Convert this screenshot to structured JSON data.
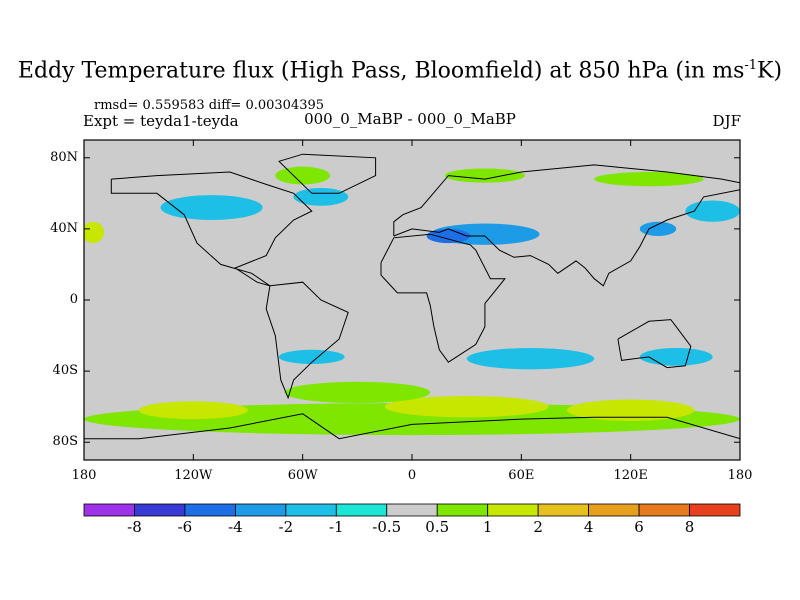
{
  "chart_data": {
    "type": "heatmap",
    "title_main": "Eddy Temperature flux (High Pass, Bloomfield) at 850 hPa (in ms",
    "title_sup": "-1",
    "title_end": "K)",
    "rmsd_text": "rmsd= 0.559583 diff= 0.00304395",
    "expt_text": "Expt = teyda1-teyda",
    "experiment": "000_0_MaBP - 000_0_MaBP",
    "season": "DJF",
    "lon_range": [
      -180,
      180
    ],
    "lat_range": [
      -90,
      90
    ],
    "x_ticks": [
      {
        "lon": -180,
        "label": "180"
      },
      {
        "lon": -120,
        "label": "120W"
      },
      {
        "lon": -60,
        "label": "60W"
      },
      {
        "lon": 0,
        "label": "0"
      },
      {
        "lon": 60,
        "label": "60E"
      },
      {
        "lon": 120,
        "label": "120E"
      },
      {
        "lon": 180,
        "label": "180"
      }
    ],
    "y_ticks": [
      {
        "lat": 80,
        "label": "80N"
      },
      {
        "lat": 40,
        "label": "40N"
      },
      {
        "lat": 0,
        "label": "0"
      },
      {
        "lat": -40,
        "label": "40S"
      },
      {
        "lat": -80,
        "label": "80S"
      }
    ],
    "colorbar": {
      "levels": [
        "-8",
        "-6",
        "-4",
        "-2",
        "-1",
        "-0.5",
        "0.5",
        "1",
        "2",
        "4",
        "6",
        "8"
      ],
      "colors": [
        "#9d32e8",
        "#3939d6",
        "#1e6fe6",
        "#1e9be6",
        "#1ebfe6",
        "#1ee6d6",
        "#cccccc",
        "#7fe600",
        "#c7e600",
        "#e6c01e",
        "#e6a01e",
        "#e67a1e",
        "#e6401e"
      ]
    },
    "anomalies": [
      {
        "lon": 40,
        "lat": 37,
        "rx": 30,
        "ry": 6,
        "value": -3
      },
      {
        "lon": 20,
        "lat": 36,
        "rx": 12,
        "ry": 4,
        "value": -4
      },
      {
        "lon": -110,
        "lat": 52,
        "rx": 28,
        "ry": 7,
        "value": -1.5
      },
      {
        "lon": -50,
        "lat": 58,
        "rx": 15,
        "ry": 5,
        "value": -1.5
      },
      {
        "lon": 165,
        "lat": 50,
        "rx": 15,
        "ry": 6,
        "value": -1.5
      },
      {
        "lon": 135,
        "lat": 40,
        "rx": 10,
        "ry": 4,
        "value": -2
      },
      {
        "lon": 65,
        "lat": -33,
        "rx": 35,
        "ry": 6,
        "value": -1.5
      },
      {
        "lon": 145,
        "lat": -32,
        "rx": 20,
        "ry": 5,
        "value": -1.5
      },
      {
        "lon": -55,
        "lat": -32,
        "rx": 18,
        "ry": 4,
        "value": -1
      },
      {
        "lon": -175,
        "lat": 38,
        "rx": 6,
        "ry": 6,
        "value": 1.5
      },
      {
        "lon": -60,
        "lat": 70,
        "rx": 15,
        "ry": 5,
        "value": 1
      },
      {
        "lon": 40,
        "lat": 70,
        "rx": 22,
        "ry": 4,
        "value": 1
      },
      {
        "lon": 130,
        "lat": 68,
        "rx": 30,
        "ry": 4,
        "value": 1
      },
      {
        "lon": 0,
        "lat": -67,
        "rx": 180,
        "ry": 9,
        "value": 1
      },
      {
        "lon": 30,
        "lat": -60,
        "rx": 45,
        "ry": 6,
        "value": 2
      },
      {
        "lon": 120,
        "lat": -62,
        "rx": 35,
        "ry": 6,
        "value": 2
      },
      {
        "lon": -120,
        "lat": -62,
        "rx": 30,
        "ry": 5,
        "value": 2
      },
      {
        "lon": -30,
        "lat": -52,
        "rx": 40,
        "ry": 6,
        "value": 1
      }
    ]
  }
}
